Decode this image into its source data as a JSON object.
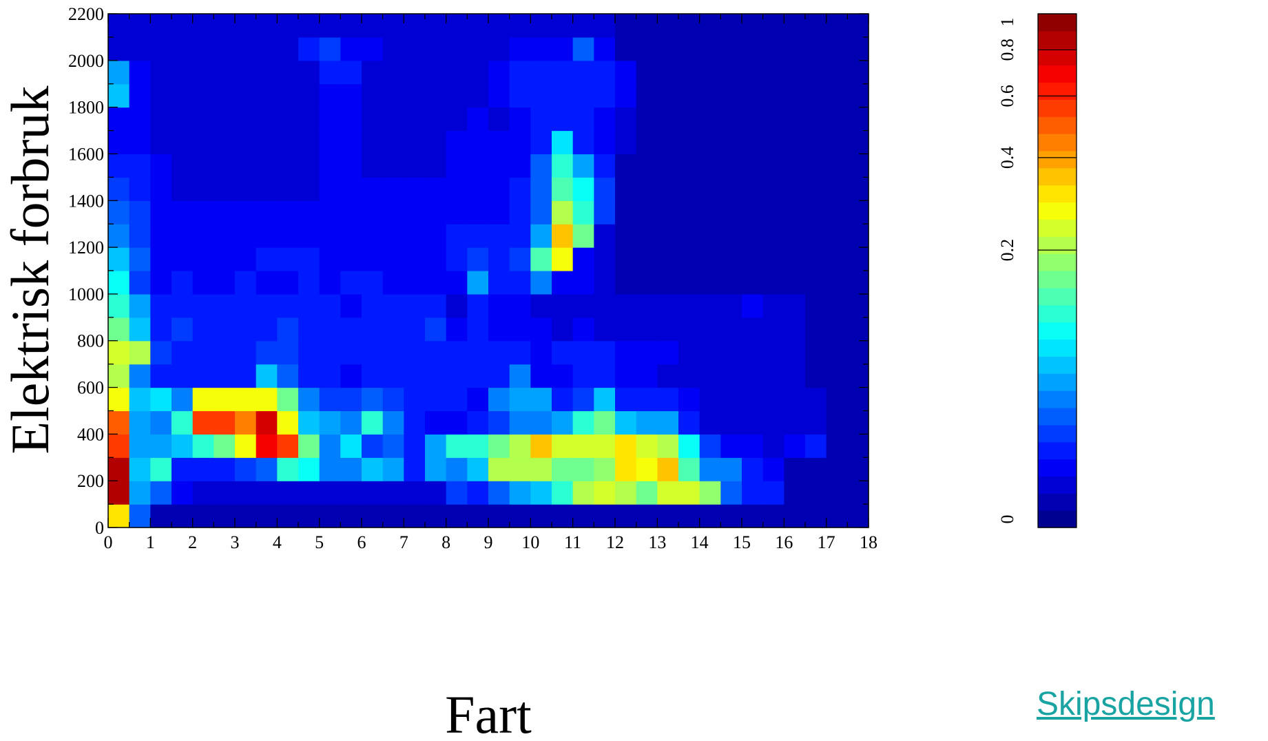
{
  "link": {
    "label": "Skipsdesign",
    "color": "#1aa3a3"
  },
  "chart_data": {
    "type": "heatmap",
    "title": "",
    "xlabel": "Fart",
    "ylabel": "Elektrisk forbruk",
    "xlim": [
      0,
      18
    ],
    "ylim": [
      0,
      2200
    ],
    "x_bin_width": 0.5,
    "y_bin_width": 100,
    "x_ticks": [
      0,
      1,
      2,
      3,
      4,
      5,
      6,
      7,
      8,
      9,
      10,
      11,
      12,
      13,
      14,
      15,
      16,
      17,
      18
    ],
    "y_ticks": [
      0,
      200,
      400,
      600,
      800,
      1000,
      1200,
      1400,
      1600,
      1800,
      2000,
      2200
    ],
    "colorbar": {
      "range": [
        0,
        1
      ],
      "ticks": [
        0,
        0.2,
        0.4,
        0.6,
        0.8,
        1
      ],
      "scale": "nonlinear",
      "colormap": "jet"
    },
    "grid": false,
    "x": [
      0.25,
      0.75,
      1.25,
      1.75,
      2.25,
      2.75,
      3.25,
      3.75,
      4.25,
      4.75,
      5.25,
      5.75,
      6.25,
      6.75,
      7.25,
      7.75,
      8.25,
      8.75,
      9.25,
      9.75,
      10.25,
      10.75,
      11.25,
      11.75,
      12.25,
      12.75,
      13.25,
      13.75,
      14.25,
      14.75,
      15.25,
      15.75,
      16.25,
      16.75,
      17.25,
      17.75
    ],
    "y": [
      50,
      150,
      250,
      350,
      450,
      550,
      650,
      750,
      850,
      950,
      1050,
      1150,
      1250,
      1350,
      1450,
      1550,
      1650,
      1750,
      1850,
      1950,
      2050,
      2150
    ],
    "z": [
      [
        0.32,
        0.08,
        0.02,
        0.02,
        0.02,
        0.02,
        0.02,
        0.02,
        0.02,
        0.02,
        0.02,
        0.02,
        0.02,
        0.02,
        0.02,
        0.02,
        0.02,
        0.02,
        0.02,
        0.02,
        0.02,
        0.02,
        0.02,
        0.02,
        0.02,
        0.02,
        0.02,
        0.02,
        0.02,
        0.02,
        0.02,
        0.02,
        0.02,
        0.02,
        0.02,
        0.02
      ],
      [
        0.85,
        0.1,
        0.08,
        0.04,
        0.03,
        0.03,
        0.03,
        0.03,
        0.03,
        0.03,
        0.03,
        0.03,
        0.03,
        0.03,
        0.03,
        0.03,
        0.07,
        0.05,
        0.08,
        0.1,
        0.12,
        0.16,
        0.22,
        0.24,
        0.22,
        0.18,
        0.25,
        0.25,
        0.19,
        0.08,
        0.05,
        0.05,
        0.02,
        0.02,
        0.02,
        0.02
      ],
      [
        0.85,
        0.12,
        0.16,
        0.05,
        0.05,
        0.05,
        0.07,
        0.08,
        0.15,
        0.14,
        0.09,
        0.09,
        0.12,
        0.11,
        0.06,
        0.11,
        0.09,
        0.12,
        0.21,
        0.21,
        0.2,
        0.18,
        0.18,
        0.19,
        0.31,
        0.27,
        0.36,
        0.17,
        0.09,
        0.09,
        0.05,
        0.04,
        0.02,
        0.02,
        0.02,
        0.02
      ],
      [
        0.55,
        0.11,
        0.11,
        0.12,
        0.15,
        0.18,
        0.3,
        0.7,
        0.55,
        0.18,
        0.09,
        0.13,
        0.07,
        0.08,
        0.06,
        0.11,
        0.16,
        0.16,
        0.18,
        0.2,
        0.36,
        0.25,
        0.25,
        0.26,
        0.33,
        0.24,
        0.2,
        0.14,
        0.07,
        0.04,
        0.04,
        0.03,
        0.04,
        0.05,
        0.02,
        0.02
      ],
      [
        0.5,
        0.11,
        0.09,
        0.15,
        0.55,
        0.55,
        0.45,
        0.75,
        0.3,
        0.12,
        0.1,
        0.09,
        0.15,
        0.09,
        0.06,
        0.04,
        0.04,
        0.05,
        0.07,
        0.09,
        0.09,
        0.11,
        0.15,
        0.18,
        0.12,
        0.1,
        0.1,
        0.06,
        0.03,
        0.03,
        0.03,
        0.03,
        0.03,
        0.03,
        0.02,
        0.02
      ],
      [
        0.28,
        0.12,
        0.13,
        0.09,
        0.3,
        0.3,
        0.27,
        0.3,
        0.18,
        0.09,
        0.07,
        0.07,
        0.08,
        0.07,
        0.05,
        0.05,
        0.05,
        0.04,
        0.09,
        0.1,
        0.1,
        0.06,
        0.07,
        0.12,
        0.06,
        0.06,
        0.05,
        0.04,
        0.03,
        0.03,
        0.03,
        0.03,
        0.03,
        0.03,
        0.02,
        0.02
      ],
      [
        0.22,
        0.09,
        0.06,
        0.06,
        0.06,
        0.06,
        0.06,
        0.12,
        0.08,
        0.05,
        0.05,
        0.04,
        0.05,
        0.05,
        0.05,
        0.05,
        0.05,
        0.05,
        0.05,
        0.09,
        0.04,
        0.04,
        0.05,
        0.05,
        0.04,
        0.04,
        0.03,
        0.03,
        0.03,
        0.03,
        0.03,
        0.03,
        0.03,
        0.02,
        0.02,
        0.02
      ],
      [
        0.26,
        0.2,
        0.07,
        0.06,
        0.06,
        0.06,
        0.06,
        0.07,
        0.07,
        0.05,
        0.05,
        0.05,
        0.05,
        0.05,
        0.05,
        0.05,
        0.05,
        0.05,
        0.05,
        0.05,
        0.04,
        0.05,
        0.05,
        0.05,
        0.04,
        0.04,
        0.04,
        0.03,
        0.03,
        0.03,
        0.03,
        0.03,
        0.03,
        0.02,
        0.02,
        0.02
      ],
      [
        0.18,
        0.12,
        0.06,
        0.07,
        0.05,
        0.05,
        0.06,
        0.05,
        0.07,
        0.05,
        0.05,
        0.05,
        0.05,
        0.05,
        0.05,
        0.07,
        0.04,
        0.06,
        0.04,
        0.04,
        0.04,
        0.03,
        0.04,
        0.03,
        0.03,
        0.03,
        0.03,
        0.03,
        0.03,
        0.03,
        0.03,
        0.03,
        0.03,
        0.02,
        0.02,
        0.02
      ],
      [
        0.15,
        0.1,
        0.05,
        0.05,
        0.05,
        0.05,
        0.05,
        0.05,
        0.05,
        0.05,
        0.05,
        0.04,
        0.05,
        0.05,
        0.06,
        0.05,
        0.03,
        0.05,
        0.04,
        0.04,
        0.03,
        0.03,
        0.03,
        0.03,
        0.03,
        0.03,
        0.03,
        0.03,
        0.03,
        0.03,
        0.04,
        0.03,
        0.03,
        0.02,
        0.02,
        0.02
      ],
      [
        0.14,
        0.07,
        0.04,
        0.05,
        0.04,
        0.04,
        0.05,
        0.04,
        0.04,
        0.05,
        0.04,
        0.05,
        0.05,
        0.04,
        0.04,
        0.04,
        0.04,
        0.11,
        0.05,
        0.05,
        0.09,
        0.04,
        0.04,
        0.03,
        0.02,
        0.02,
        0.02,
        0.02,
        0.02,
        0.02,
        0.02,
        0.02,
        0.02,
        0.02,
        0.02,
        0.02
      ],
      [
        0.12,
        0.08,
        0.04,
        0.04,
        0.04,
        0.04,
        0.04,
        0.05,
        0.05,
        0.05,
        0.04,
        0.04,
        0.04,
        0.04,
        0.04,
        0.04,
        0.05,
        0.07,
        0.06,
        0.07,
        0.17,
        0.27,
        0.04,
        0.03,
        0.02,
        0.02,
        0.02,
        0.02,
        0.02,
        0.02,
        0.02,
        0.02,
        0.02,
        0.02,
        0.02,
        0.02
      ],
      [
        0.09,
        0.07,
        0.04,
        0.04,
        0.04,
        0.04,
        0.04,
        0.04,
        0.04,
        0.04,
        0.04,
        0.04,
        0.04,
        0.04,
        0.04,
        0.04,
        0.05,
        0.05,
        0.05,
        0.05,
        0.1,
        0.35,
        0.18,
        0.03,
        0.02,
        0.02,
        0.02,
        0.02,
        0.02,
        0.02,
        0.02,
        0.02,
        0.02,
        0.02,
        0.02,
        0.02
      ],
      [
        0.08,
        0.07,
        0.04,
        0.04,
        0.04,
        0.04,
        0.04,
        0.04,
        0.04,
        0.04,
        0.04,
        0.04,
        0.04,
        0.04,
        0.04,
        0.04,
        0.04,
        0.04,
        0.04,
        0.05,
        0.08,
        0.2,
        0.15,
        0.07,
        0.02,
        0.02,
        0.02,
        0.02,
        0.02,
        0.02,
        0.02,
        0.02,
        0.02,
        0.02,
        0.02,
        0.02
      ],
      [
        0.07,
        0.05,
        0.04,
        0.03,
        0.03,
        0.03,
        0.03,
        0.03,
        0.03,
        0.03,
        0.04,
        0.04,
        0.04,
        0.04,
        0.04,
        0.04,
        0.04,
        0.04,
        0.04,
        0.05,
        0.08,
        0.17,
        0.14,
        0.07,
        0.02,
        0.02,
        0.02,
        0.02,
        0.02,
        0.02,
        0.02,
        0.02,
        0.02,
        0.02,
        0.02,
        0.02
      ],
      [
        0.05,
        0.05,
        0.04,
        0.03,
        0.03,
        0.03,
        0.03,
        0.03,
        0.03,
        0.03,
        0.04,
        0.04,
        0.03,
        0.03,
        0.03,
        0.03,
        0.04,
        0.04,
        0.04,
        0.04,
        0.08,
        0.15,
        0.1,
        0.05,
        0.02,
        0.02,
        0.02,
        0.02,
        0.02,
        0.02,
        0.02,
        0.02,
        0.02,
        0.02,
        0.02,
        0.02
      ],
      [
        0.04,
        0.04,
        0.03,
        0.03,
        0.03,
        0.03,
        0.03,
        0.03,
        0.03,
        0.03,
        0.04,
        0.04,
        0.03,
        0.03,
        0.03,
        0.03,
        0.04,
        0.04,
        0.04,
        0.04,
        0.05,
        0.13,
        0.06,
        0.04,
        0.03,
        0.02,
        0.02,
        0.02,
        0.02,
        0.02,
        0.02,
        0.02,
        0.02,
        0.02,
        0.02,
        0.02
      ],
      [
        0.04,
        0.04,
        0.03,
        0.03,
        0.03,
        0.03,
        0.03,
        0.03,
        0.03,
        0.03,
        0.04,
        0.04,
        0.03,
        0.03,
        0.03,
        0.03,
        0.03,
        0.04,
        0.03,
        0.04,
        0.05,
        0.05,
        0.05,
        0.04,
        0.03,
        0.02,
        0.02,
        0.02,
        0.02,
        0.02,
        0.02,
        0.02,
        0.02,
        0.02,
        0.02,
        0.02
      ],
      [
        0.12,
        0.04,
        0.03,
        0.03,
        0.03,
        0.03,
        0.03,
        0.03,
        0.03,
        0.03,
        0.04,
        0.04,
        0.03,
        0.03,
        0.03,
        0.03,
        0.03,
        0.03,
        0.04,
        0.05,
        0.06,
        0.06,
        0.05,
        0.05,
        0.04,
        0.02,
        0.02,
        0.02,
        0.02,
        0.02,
        0.02,
        0.02,
        0.02,
        0.02,
        0.02,
        0.02
      ],
      [
        0.11,
        0.04,
        0.03,
        0.03,
        0.03,
        0.03,
        0.03,
        0.03,
        0.03,
        0.03,
        0.05,
        0.05,
        0.03,
        0.03,
        0.03,
        0.03,
        0.03,
        0.03,
        0.04,
        0.05,
        0.06,
        0.06,
        0.05,
        0.05,
        0.04,
        0.02,
        0.02,
        0.02,
        0.02,
        0.02,
        0.02,
        0.02,
        0.02,
        0.02,
        0.02,
        0.02
      ],
      [
        0.03,
        0.03,
        0.03,
        0.03,
        0.03,
        0.03,
        0.03,
        0.03,
        0.03,
        0.05,
        0.07,
        0.04,
        0.04,
        0.03,
        0.03,
        0.03,
        0.03,
        0.03,
        0.03,
        0.04,
        0.04,
        0.04,
        0.08,
        0.04,
        0.02,
        0.02,
        0.02,
        0.02,
        0.02,
        0.02,
        0.02,
        0.02,
        0.02,
        0.02,
        0.02,
        0.02
      ],
      [
        0.03,
        0.03,
        0.03,
        0.03,
        0.03,
        0.03,
        0.03,
        0.03,
        0.03,
        0.03,
        0.03,
        0.03,
        0.03,
        0.03,
        0.03,
        0.03,
        0.03,
        0.03,
        0.03,
        0.03,
        0.03,
        0.03,
        0.03,
        0.03,
        0.02,
        0.02,
        0.02,
        0.02,
        0.02,
        0.02,
        0.02,
        0.02,
        0.02,
        0.02,
        0.02,
        0.02
      ]
    ]
  }
}
